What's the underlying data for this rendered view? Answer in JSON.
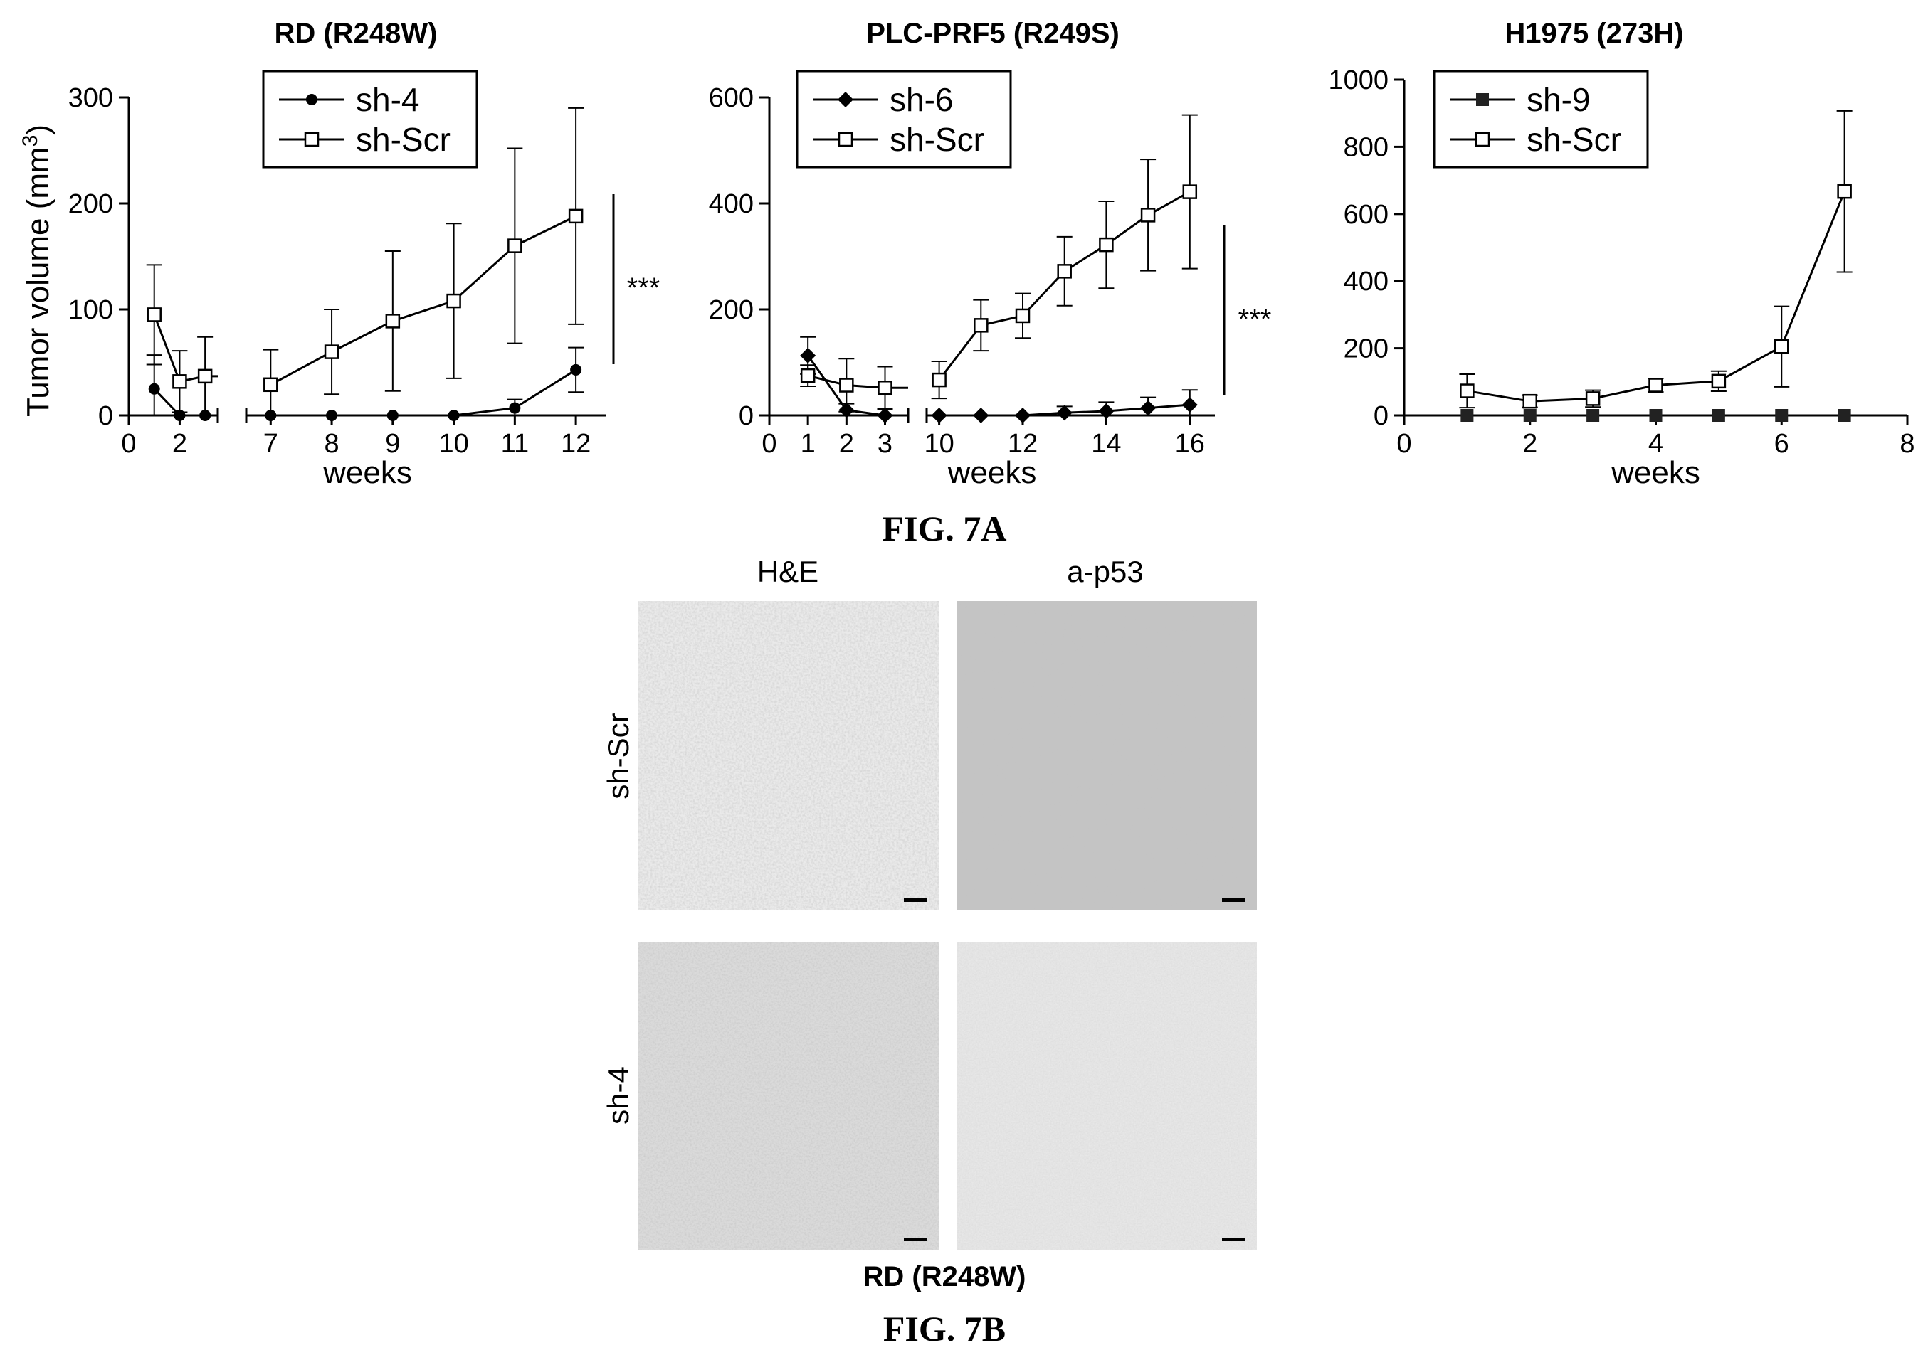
{
  "figure_labels": {
    "fig_7a": "FIG. 7A",
    "fig_7b": "FIG. 7B"
  },
  "chart_data": [
    {
      "type": "line",
      "title": "RD (R248W)",
      "xlabel": "weeks",
      "ylabel": "Tumor volume (mm³)",
      "ylabel_base": "Tumor volume (mm",
      "ylabel_sup": "3",
      "ylabel_close": ")",
      "ylim": [
        0,
        300
      ],
      "yticks": [
        "0",
        "100",
        "200",
        "300"
      ],
      "x_segments": [
        {
          "xlim": [
            0,
            3.5
          ],
          "ticks": [
            "0",
            "2"
          ]
        },
        {
          "xlim": [
            6.6,
            12.5
          ],
          "ticks": [
            "7",
            "8",
            "9",
            "10",
            "11",
            "12"
          ]
        }
      ],
      "legend_position": "top",
      "significance": "***",
      "series": [
        {
          "name": "sh-4",
          "marker": "circle-filled",
          "x": [
            1,
            2,
            3,
            7,
            8,
            9,
            10,
            11,
            12
          ],
          "y": [
            25,
            0,
            0,
            0,
            0,
            0,
            0,
            7,
            43
          ],
          "err": [
            32,
            0,
            0,
            0,
            0,
            0,
            0,
            8,
            21
          ]
        },
        {
          "name": "sh-Scr",
          "marker": "square-open",
          "x": [
            1,
            2,
            3,
            7,
            8,
            9,
            10,
            11,
            12
          ],
          "y": [
            95,
            32,
            37,
            29,
            60,
            89,
            108,
            160,
            188
          ],
          "err": [
            47,
            29,
            37,
            33,
            40,
            66,
            73,
            92,
            102
          ]
        }
      ]
    },
    {
      "type": "line",
      "title": "PLC-PRF5 (R249S)",
      "xlabel": "weeks",
      "ylim": [
        0,
        600
      ],
      "yticks": [
        "0",
        "200",
        "400",
        "600"
      ],
      "x_segments": [
        {
          "xlim": [
            0,
            3.6
          ],
          "ticks": [
            "0",
            "1",
            "2",
            "3"
          ]
        },
        {
          "xlim": [
            9.7,
            16.6
          ],
          "ticks": [
            "10",
            "12",
            "14",
            "16"
          ]
        }
      ],
      "legend_position": "top",
      "significance": "***",
      "series": [
        {
          "name": "sh-6",
          "marker": "diamond-filled",
          "x": [
            1,
            2,
            3,
            10,
            11,
            12,
            13,
            14,
            15,
            16
          ],
          "y": [
            113,
            10,
            0,
            0,
            0,
            0,
            5,
            8,
            14,
            20
          ],
          "err": [
            35,
            12,
            0,
            0,
            0,
            0,
            12,
            17,
            20,
            28
          ]
        },
        {
          "name": "sh-Scr",
          "marker": "square-open",
          "x": [
            1,
            2,
            3,
            10,
            11,
            12,
            13,
            14,
            15,
            16
          ],
          "y": [
            75,
            57,
            52,
            67,
            170,
            188,
            272,
            322,
            378,
            422
          ],
          "err": [
            20,
            50,
            40,
            35,
            48,
            42,
            65,
            82,
            105,
            145
          ]
        }
      ]
    },
    {
      "type": "line",
      "title": "H1975 (273H)",
      "xlabel": "weeks",
      "ylim": [
        0,
        1000
      ],
      "yticks": [
        "0",
        "200",
        "400",
        "600",
        "800",
        "1000"
      ],
      "xlim": [
        0,
        8
      ],
      "xticks": [
        "0",
        "2",
        "4",
        "6",
        "8"
      ],
      "legend_position": "top",
      "series": [
        {
          "name": "sh-9",
          "marker": "square-filled",
          "x": [
            1,
            2,
            3,
            4,
            5,
            6,
            7
          ],
          "y": [
            0,
            0,
            0,
            0,
            0,
            0,
            0
          ],
          "err": [
            0,
            0,
            0,
            0,
            0,
            0,
            0
          ]
        },
        {
          "name": "sh-Scr",
          "marker": "square-open",
          "x": [
            1,
            2,
            3,
            4,
            5,
            6,
            7
          ],
          "y": [
            73,
            42,
            50,
            90,
            102,
            205,
            667
          ],
          "err": [
            50,
            18,
            25,
            20,
            30,
            120,
            240
          ]
        }
      ]
    }
  ],
  "micrographs": {
    "columns": [
      "H&E",
      "a-p53"
    ],
    "rows": [
      "sh-Scr",
      "sh-4"
    ],
    "caption": "RD (R248W)"
  }
}
